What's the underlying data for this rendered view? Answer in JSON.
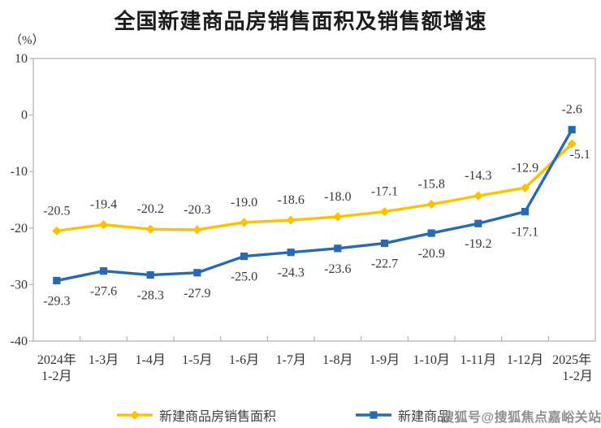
{
  "header": {
    "title": "全国新建商品房销售面积及销售额增速",
    "unit_label": "（%）"
  },
  "legend": {
    "items": [
      {
        "id": "sales-area",
        "label": "新建商品房销售面积",
        "color": "#FFC000",
        "marker": "diamond"
      },
      {
        "id": "sales-amount",
        "label": "新建商品",
        "color": "#2869B4",
        "marker": "square",
        "note": "label partially hidden by watermark"
      }
    ]
  },
  "watermark": {
    "text": "搜狐号@搜狐焦点嘉峪关站",
    "color": "#8f8f8f"
  },
  "colors": {
    "accent_yellow": "#FFC000",
    "accent_blue": "#2869B4",
    "plot_border": "#b5b5b5"
  },
  "chart_data": {
    "type": "line",
    "title": "全国新建商品房销售面积及销售额增速",
    "unit": "%",
    "categories": [
      "2024年|1-2月",
      "1-3月",
      "1-4月",
      "1-5月",
      "1-6月",
      "1-7月",
      "1-8月",
      "1-9月",
      "1-10月",
      "1-11月",
      "1-12月",
      "2025年|1-2月"
    ],
    "series": [
      {
        "id": "sales-area",
        "name": "新建商品房销售面积",
        "color": "#FFC000",
        "marker": "diamond",
        "values": [
          -20.5,
          -19.4,
          -20.2,
          -20.3,
          -19.0,
          -18.6,
          -18.0,
          -17.1,
          -15.8,
          -14.3,
          -12.9,
          -5.1
        ]
      },
      {
        "id": "sales-amount",
        "name": "新建商品房销售额",
        "color": "#2869B4",
        "marker": "square",
        "values": [
          -29.3,
          -27.6,
          -28.3,
          -27.9,
          -25.0,
          -24.3,
          -23.6,
          -22.7,
          -20.9,
          -19.2,
          -17.1,
          -2.6
        ]
      }
    ],
    "ylim": [
      -40,
      10
    ],
    "y_ticks": [
      10,
      0,
      -10,
      -20,
      -30,
      -40
    ],
    "grid": false,
    "data_labels": true,
    "legend_position": "bottom"
  }
}
